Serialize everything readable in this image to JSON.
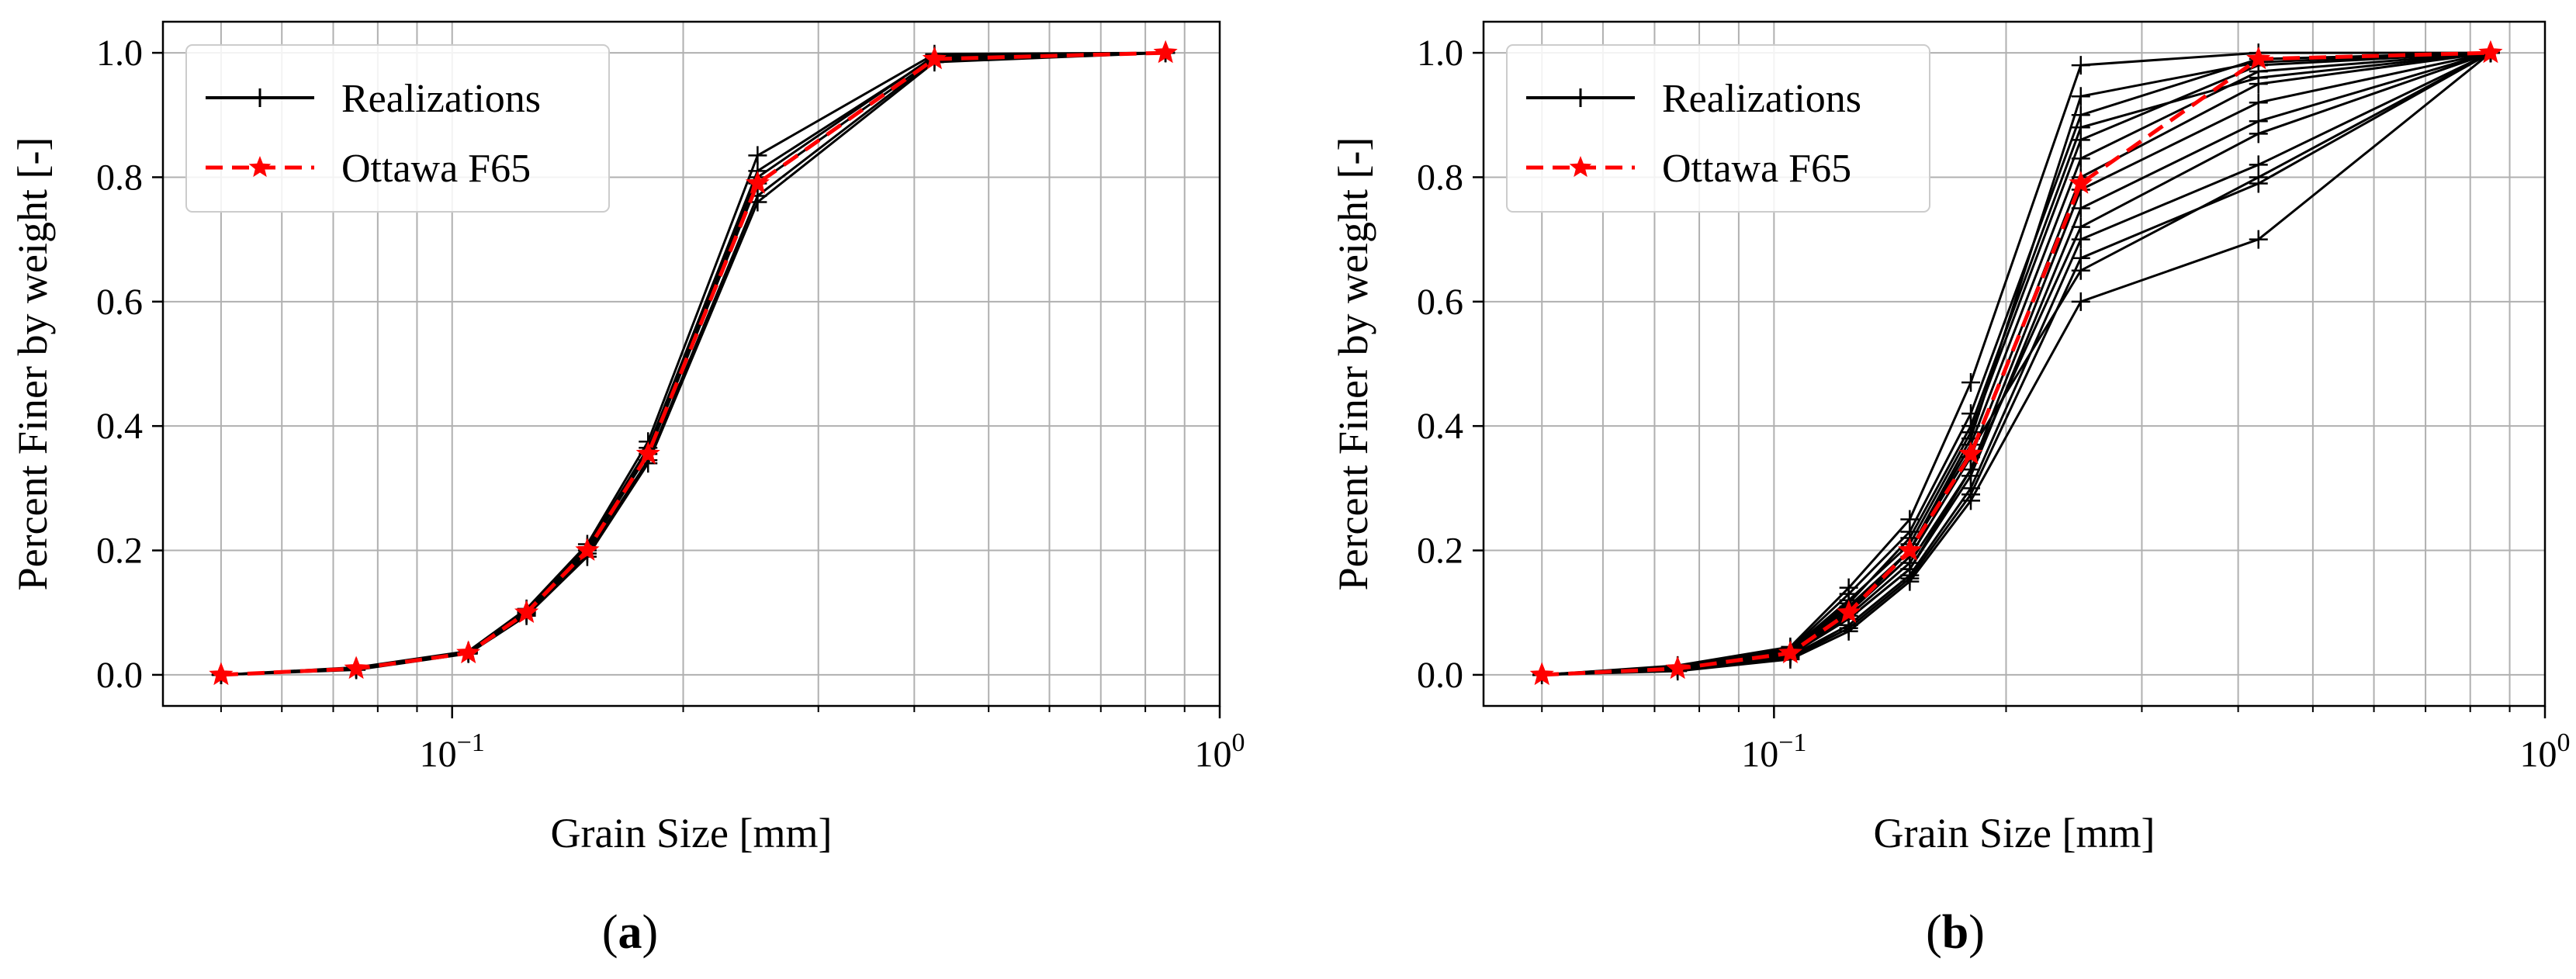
{
  "colors": {
    "realization": "#000000",
    "reference": "#ff0000",
    "grid": "#b0b0b0"
  },
  "chart_data": [
    {
      "type": "line",
      "panel_label": "a",
      "xlabel": "Grain Size [mm]",
      "ylabel": "Percent Finer by weight [-]",
      "xscale": "log",
      "xlim": [
        0.042,
        1.0
      ],
      "ylim": [
        -0.05,
        1.05
      ],
      "x_ticks": [
        {
          "value": 0.1,
          "base": "10",
          "exp": "−1"
        },
        {
          "value": 1.0,
          "base": "10",
          "exp": "0"
        }
      ],
      "y_ticks": [
        "0.0",
        "0.2",
        "0.4",
        "0.6",
        "0.8",
        "1.0"
      ],
      "grid": true,
      "legend": {
        "position": "top-left",
        "entries": [
          "Realizations",
          "Ottawa F65"
        ]
      },
      "x": [
        0.05,
        0.075,
        0.105,
        0.125,
        0.15,
        0.18,
        0.25,
        0.425,
        0.85
      ],
      "reference": {
        "name": "Ottawa F65",
        "values": [
          0.0,
          0.01,
          0.035,
          0.1,
          0.2,
          0.355,
          0.79,
          0.99,
          1.0
        ]
      },
      "realizations": [
        [
          0.0,
          0.008,
          0.034,
          0.095,
          0.19,
          0.34,
          0.76,
          0.985,
          1.0
        ],
        [
          0.0,
          0.009,
          0.035,
          0.098,
          0.195,
          0.345,
          0.77,
          0.988,
          1.0
        ],
        [
          0.0,
          0.01,
          0.036,
          0.1,
          0.2,
          0.355,
          0.79,
          0.99,
          1.0
        ],
        [
          0.0,
          0.011,
          0.037,
          0.103,
          0.205,
          0.365,
          0.81,
          0.993,
          1.0
        ],
        [
          0.0,
          0.012,
          0.038,
          0.106,
          0.21,
          0.375,
          0.835,
          0.998,
          1.0
        ],
        [
          0.0,
          0.01,
          0.035,
          0.1,
          0.205,
          0.36,
          0.8,
          0.995,
          1.0
        ]
      ]
    },
    {
      "type": "line",
      "panel_label": "b",
      "xlabel": "Grain Size [mm]",
      "ylabel": "Percent Finer by weight [-]",
      "xscale": "log",
      "xlim": [
        0.042,
        1.0
      ],
      "ylim": [
        -0.05,
        1.05
      ],
      "x_ticks": [
        {
          "value": 0.1,
          "base": "10",
          "exp": "−1"
        },
        {
          "value": 1.0,
          "base": "10",
          "exp": "0"
        }
      ],
      "y_ticks": [
        "0.0",
        "0.2",
        "0.4",
        "0.6",
        "0.8",
        "1.0"
      ],
      "grid": true,
      "legend": {
        "position": "top-left",
        "entries": [
          "Realizations",
          "Ottawa F65"
        ]
      },
      "x": [
        0.05,
        0.075,
        0.105,
        0.125,
        0.15,
        0.18,
        0.25,
        0.425,
        0.85
      ],
      "reference": {
        "name": "Ottawa F65",
        "values": [
          0.0,
          0.01,
          0.035,
          0.1,
          0.2,
          0.355,
          0.79,
          0.99,
          1.0
        ]
      },
      "realizations": [
        [
          0.0,
          0.006,
          0.025,
          0.07,
          0.15,
          0.28,
          0.6,
          0.7,
          1.0
        ],
        [
          0.0,
          0.007,
          0.028,
          0.075,
          0.155,
          0.29,
          0.67,
          0.79,
          1.0
        ],
        [
          0.0,
          0.008,
          0.03,
          0.08,
          0.16,
          0.3,
          0.7,
          0.82,
          1.0
        ],
        [
          0.0,
          0.009,
          0.032,
          0.09,
          0.17,
          0.32,
          0.75,
          0.89,
          1.0
        ],
        [
          0.0,
          0.01,
          0.034,
          0.095,
          0.18,
          0.33,
          0.78,
          0.92,
          1.0
        ],
        [
          0.0,
          0.011,
          0.036,
          0.1,
          0.19,
          0.35,
          0.8,
          0.95,
          1.0
        ],
        [
          0.0,
          0.012,
          0.038,
          0.11,
          0.2,
          0.37,
          0.83,
          0.97,
          1.0
        ],
        [
          0.0,
          0.013,
          0.04,
          0.12,
          0.21,
          0.39,
          0.86,
          0.98,
          1.0
        ],
        [
          0.0,
          0.014,
          0.042,
          0.13,
          0.23,
          0.42,
          0.9,
          0.99,
          1.0
        ],
        [
          0.0,
          0.015,
          0.045,
          0.14,
          0.25,
          0.47,
          0.98,
          1.0,
          1.0
        ],
        [
          0.0,
          0.01,
          0.035,
          0.1,
          0.2,
          0.36,
          0.65,
          0.8,
          1.0
        ],
        [
          0.0,
          0.009,
          0.033,
          0.09,
          0.17,
          0.33,
          0.72,
          0.87,
          1.0
        ],
        [
          0.0,
          0.012,
          0.039,
          0.115,
          0.22,
          0.4,
          0.88,
          0.96,
          1.0
        ],
        [
          0.0,
          0.011,
          0.037,
          0.105,
          0.2,
          0.38,
          0.93,
          0.985,
          1.0
        ]
      ]
    }
  ]
}
